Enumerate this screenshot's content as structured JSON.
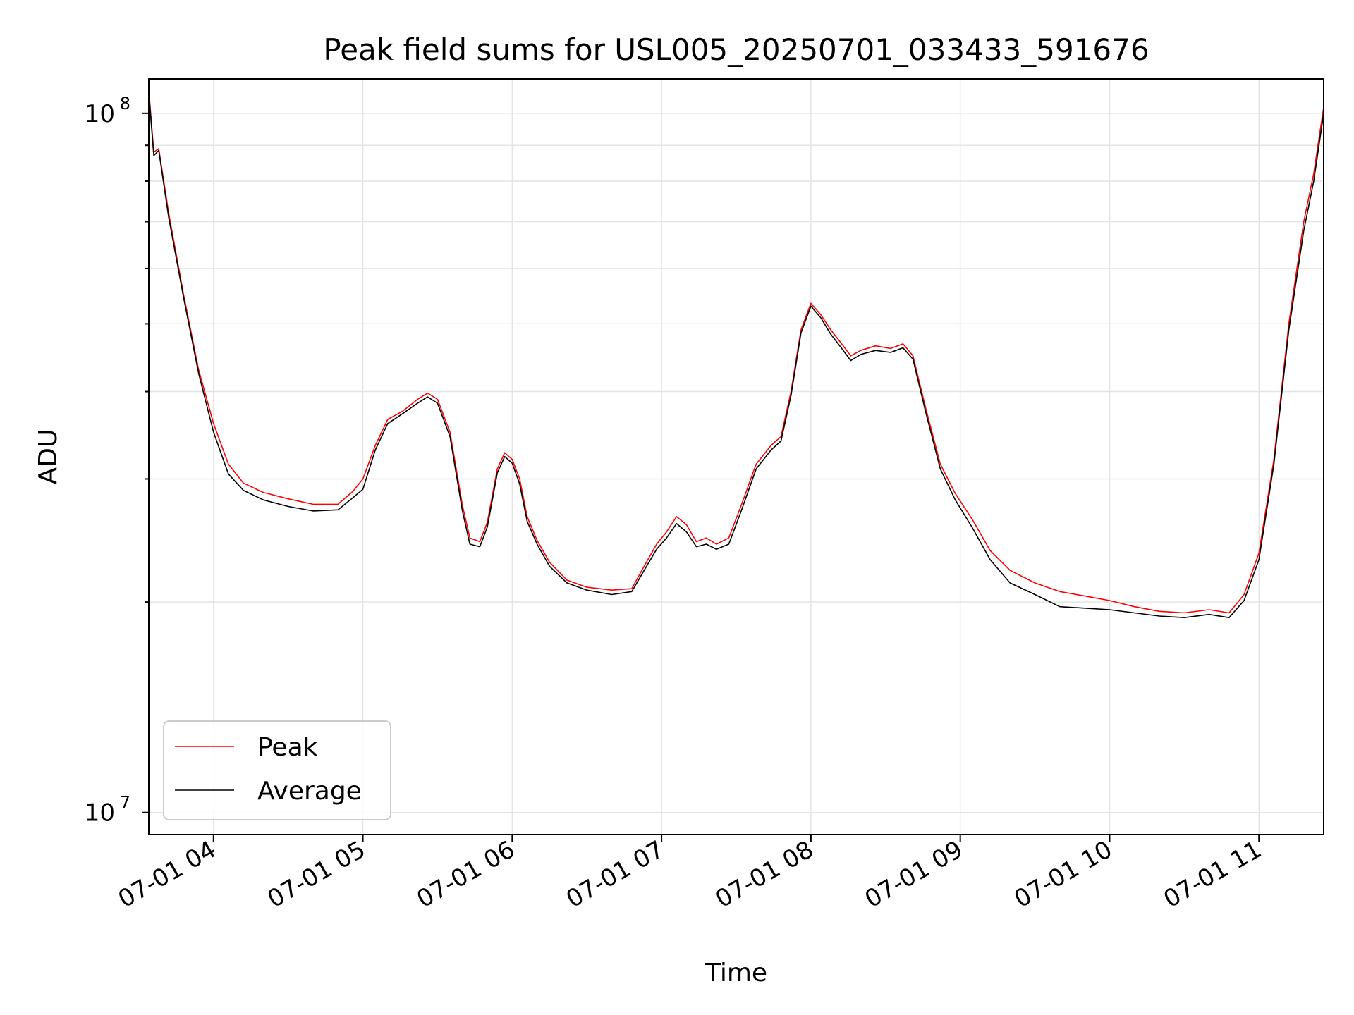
{
  "chart_data": {
    "type": "line",
    "title": "Peak field sums for USL005_20250701_033433_591676",
    "xlabel": "Time",
    "ylabel": "ADU",
    "y_scale": "log",
    "grid": true,
    "legend_position": "lower-left",
    "xlim": [
      "2025-07-01 03:34",
      "2025-07-01 11:26"
    ],
    "ylim": [
      9300000,
      112000000
    ],
    "x_ticks": [
      {
        "value": "2025-07-01 04:00",
        "label": "07-01 04"
      },
      {
        "value": "2025-07-01 05:00",
        "label": "07-01 05"
      },
      {
        "value": "2025-07-01 06:00",
        "label": "07-01 06"
      },
      {
        "value": "2025-07-01 07:00",
        "label": "07-01 07"
      },
      {
        "value": "2025-07-01 08:00",
        "label": "07-01 08"
      },
      {
        "value": "2025-07-01 09:00",
        "label": "07-01 09"
      },
      {
        "value": "2025-07-01 10:00",
        "label": "07-01 10"
      },
      {
        "value": "2025-07-01 11:00",
        "label": "07-01 11"
      }
    ],
    "y_ticks": [
      {
        "value": 10000000,
        "base": "10",
        "exp": "7"
      },
      {
        "value": 100000000,
        "base": "10",
        "exp": "8"
      }
    ],
    "series": [
      {
        "name": "Peak",
        "color": "#ff0000",
        "points": [
          [
            "2025-07-01 03:34",
            108000000
          ],
          [
            "2025-07-01 03:36",
            88000000
          ],
          [
            "2025-07-01 03:38",
            89000000
          ],
          [
            "2025-07-01 03:42",
            72000000
          ],
          [
            "2025-07-01 03:48",
            55000000
          ],
          [
            "2025-07-01 03:54",
            43000000
          ],
          [
            "2025-07-01 04:00",
            36000000
          ],
          [
            "2025-07-01 04:06",
            31500000
          ],
          [
            "2025-07-01 04:12",
            29600000
          ],
          [
            "2025-07-01 04:20",
            28700000
          ],
          [
            "2025-07-01 04:30",
            28100000
          ],
          [
            "2025-07-01 04:40",
            27600000
          ],
          [
            "2025-07-01 04:50",
            27600000
          ],
          [
            "2025-07-01 04:56",
            28800000
          ],
          [
            "2025-07-01 05:00",
            30000000
          ],
          [
            "2025-07-01 05:05",
            33500000
          ],
          [
            "2025-07-01 05:10",
            36500000
          ],
          [
            "2025-07-01 05:16",
            37500000
          ],
          [
            "2025-07-01 05:22",
            39000000
          ],
          [
            "2025-07-01 05:26",
            39800000
          ],
          [
            "2025-07-01 05:30",
            39000000
          ],
          [
            "2025-07-01 05:35",
            35000000
          ],
          [
            "2025-07-01 05:40",
            27500000
          ],
          [
            "2025-07-01 05:43",
            24700000
          ],
          [
            "2025-07-01 05:47",
            24400000
          ],
          [
            "2025-07-01 05:50",
            26000000
          ],
          [
            "2025-07-01 05:54",
            31000000
          ],
          [
            "2025-07-01 05:57",
            32700000
          ],
          [
            "2025-07-01 06:00",
            32000000
          ],
          [
            "2025-07-01 06:03",
            30000000
          ],
          [
            "2025-07-01 06:06",
            26500000
          ],
          [
            "2025-07-01 06:10",
            24500000
          ],
          [
            "2025-07-01 06:15",
            22800000
          ],
          [
            "2025-07-01 06:22",
            21500000
          ],
          [
            "2025-07-01 06:30",
            21000000
          ],
          [
            "2025-07-01 06:40",
            20800000
          ],
          [
            "2025-07-01 06:48",
            20900000
          ],
          [
            "2025-07-01 06:53",
            22500000
          ],
          [
            "2025-07-01 06:58",
            24200000
          ],
          [
            "2025-07-01 07:02",
            25200000
          ],
          [
            "2025-07-01 07:06",
            26500000
          ],
          [
            "2025-07-01 07:10",
            25800000
          ],
          [
            "2025-07-01 07:14",
            24400000
          ],
          [
            "2025-07-01 07:18",
            24700000
          ],
          [
            "2025-07-01 07:22",
            24200000
          ],
          [
            "2025-07-01 07:27",
            24700000
          ],
          [
            "2025-07-01 07:32",
            27500000
          ],
          [
            "2025-07-01 07:38",
            31500000
          ],
          [
            "2025-07-01 07:44",
            33500000
          ],
          [
            "2025-07-01 07:48",
            34500000
          ],
          [
            "2025-07-01 07:52",
            40000000
          ],
          [
            "2025-07-01 07:56",
            49000000
          ],
          [
            "2025-07-01 08:00",
            53500000
          ],
          [
            "2025-07-01 08:04",
            51500000
          ],
          [
            "2025-07-01 08:08",
            49000000
          ],
          [
            "2025-07-01 08:12",
            47000000
          ],
          [
            "2025-07-01 08:16",
            45000000
          ],
          [
            "2025-07-01 08:20",
            45800000
          ],
          [
            "2025-07-01 08:26",
            46500000
          ],
          [
            "2025-07-01 08:32",
            46100000
          ],
          [
            "2025-07-01 08:37",
            46800000
          ],
          [
            "2025-07-01 08:41",
            45000000
          ],
          [
            "2025-07-01 08:46",
            38000000
          ],
          [
            "2025-07-01 08:52",
            31500000
          ],
          [
            "2025-07-01 08:58",
            28600000
          ],
          [
            "2025-07-01 09:05",
            26200000
          ],
          [
            "2025-07-01 09:12",
            23700000
          ],
          [
            "2025-07-01 09:20",
            22200000
          ],
          [
            "2025-07-01 09:30",
            21300000
          ],
          [
            "2025-07-01 09:40",
            20700000
          ],
          [
            "2025-07-01 09:50",
            20400000
          ],
          [
            "2025-07-01 10:00",
            20100000
          ],
          [
            "2025-07-01 10:10",
            19700000
          ],
          [
            "2025-07-01 10:20",
            19400000
          ],
          [
            "2025-07-01 10:30",
            19300000
          ],
          [
            "2025-07-01 10:40",
            19500000
          ],
          [
            "2025-07-01 10:48",
            19300000
          ],
          [
            "2025-07-01 10:54",
            20500000
          ],
          [
            "2025-07-01 11:00",
            23500000
          ],
          [
            "2025-07-01 11:06",
            32000000
          ],
          [
            "2025-07-01 11:12",
            50000000
          ],
          [
            "2025-07-01 11:18",
            70000000
          ],
          [
            "2025-07-01 11:22",
            82000000
          ],
          [
            "2025-07-01 11:26",
            102000000
          ]
        ]
      },
      {
        "name": "Average",
        "color": "#000000",
        "points": [
          [
            "2025-07-01 03:34",
            107000000
          ],
          [
            "2025-07-01 03:36",
            87000000
          ],
          [
            "2025-07-01 03:38",
            88500000
          ],
          [
            "2025-07-01 03:42",
            71000000
          ],
          [
            "2025-07-01 03:48",
            54500000
          ],
          [
            "2025-07-01 03:54",
            42500000
          ],
          [
            "2025-07-01 04:00",
            35000000
          ],
          [
            "2025-07-01 04:06",
            30500000
          ],
          [
            "2025-07-01 04:12",
            28900000
          ],
          [
            "2025-07-01 04:20",
            28000000
          ],
          [
            "2025-07-01 04:30",
            27400000
          ],
          [
            "2025-07-01 04:40",
            27000000
          ],
          [
            "2025-07-01 04:50",
            27100000
          ],
          [
            "2025-07-01 04:56",
            28200000
          ],
          [
            "2025-07-01 05:00",
            29000000
          ],
          [
            "2025-07-01 05:05",
            33000000
          ],
          [
            "2025-07-01 05:10",
            36000000
          ],
          [
            "2025-07-01 05:16",
            37200000
          ],
          [
            "2025-07-01 05:22",
            38500000
          ],
          [
            "2025-07-01 05:26",
            39300000
          ],
          [
            "2025-07-01 05:30",
            38500000
          ],
          [
            "2025-07-01 05:35",
            34500000
          ],
          [
            "2025-07-01 05:40",
            27000000
          ],
          [
            "2025-07-01 05:43",
            24200000
          ],
          [
            "2025-07-01 05:47",
            24000000
          ],
          [
            "2025-07-01 05:50",
            25600000
          ],
          [
            "2025-07-01 05:54",
            30600000
          ],
          [
            "2025-07-01 05:57",
            32300000
          ],
          [
            "2025-07-01 06:00",
            31600000
          ],
          [
            "2025-07-01 06:03",
            29500000
          ],
          [
            "2025-07-01 06:06",
            26100000
          ],
          [
            "2025-07-01 06:10",
            24200000
          ],
          [
            "2025-07-01 06:15",
            22500000
          ],
          [
            "2025-07-01 06:22",
            21300000
          ],
          [
            "2025-07-01 06:30",
            20800000
          ],
          [
            "2025-07-01 06:40",
            20500000
          ],
          [
            "2025-07-01 06:48",
            20700000
          ],
          [
            "2025-07-01 06:53",
            22200000
          ],
          [
            "2025-07-01 06:58",
            23800000
          ],
          [
            "2025-07-01 07:02",
            24700000
          ],
          [
            "2025-07-01 07:06",
            25900000
          ],
          [
            "2025-07-01 07:10",
            25200000
          ],
          [
            "2025-07-01 07:14",
            24000000
          ],
          [
            "2025-07-01 07:18",
            24200000
          ],
          [
            "2025-07-01 07:22",
            23800000
          ],
          [
            "2025-07-01 07:27",
            24200000
          ],
          [
            "2025-07-01 07:32",
            27000000
          ],
          [
            "2025-07-01 07:38",
            31000000
          ],
          [
            "2025-07-01 07:44",
            33000000
          ],
          [
            "2025-07-01 07:48",
            34000000
          ],
          [
            "2025-07-01 07:52",
            39500000
          ],
          [
            "2025-07-01 07:56",
            48500000
          ],
          [
            "2025-07-01 08:00",
            53000000
          ],
          [
            "2025-07-01 08:04",
            51000000
          ],
          [
            "2025-07-01 08:08",
            48300000
          ],
          [
            "2025-07-01 08:12",
            46300000
          ],
          [
            "2025-07-01 08:16",
            44300000
          ],
          [
            "2025-07-01 08:20",
            45200000
          ],
          [
            "2025-07-01 08:26",
            45800000
          ],
          [
            "2025-07-01 08:32",
            45500000
          ],
          [
            "2025-07-01 08:37",
            46200000
          ],
          [
            "2025-07-01 08:41",
            44500000
          ],
          [
            "2025-07-01 08:46",
            37500000
          ],
          [
            "2025-07-01 08:52",
            31000000
          ],
          [
            "2025-07-01 08:58",
            28000000
          ],
          [
            "2025-07-01 09:05",
            25500000
          ],
          [
            "2025-07-01 09:12",
            23000000
          ],
          [
            "2025-07-01 09:20",
            21300000
          ],
          [
            "2025-07-01 09:30",
            20500000
          ],
          [
            "2025-07-01 09:40",
            19700000
          ],
          [
            "2025-07-01 09:50",
            19600000
          ],
          [
            "2025-07-01 10:00",
            19500000
          ],
          [
            "2025-07-01 10:10",
            19300000
          ],
          [
            "2025-07-01 10:20",
            19100000
          ],
          [
            "2025-07-01 10:30",
            19000000
          ],
          [
            "2025-07-01 10:40",
            19200000
          ],
          [
            "2025-07-01 10:48",
            19000000
          ],
          [
            "2025-07-01 10:54",
            20100000
          ],
          [
            "2025-07-01 11:00",
            23000000
          ],
          [
            "2025-07-01 11:06",
            31500000
          ],
          [
            "2025-07-01 11:12",
            49000000
          ],
          [
            "2025-07-01 11:18",
            68000000
          ],
          [
            "2025-07-01 11:22",
            80000000
          ],
          [
            "2025-07-01 11:26",
            100000000
          ]
        ]
      }
    ]
  }
}
